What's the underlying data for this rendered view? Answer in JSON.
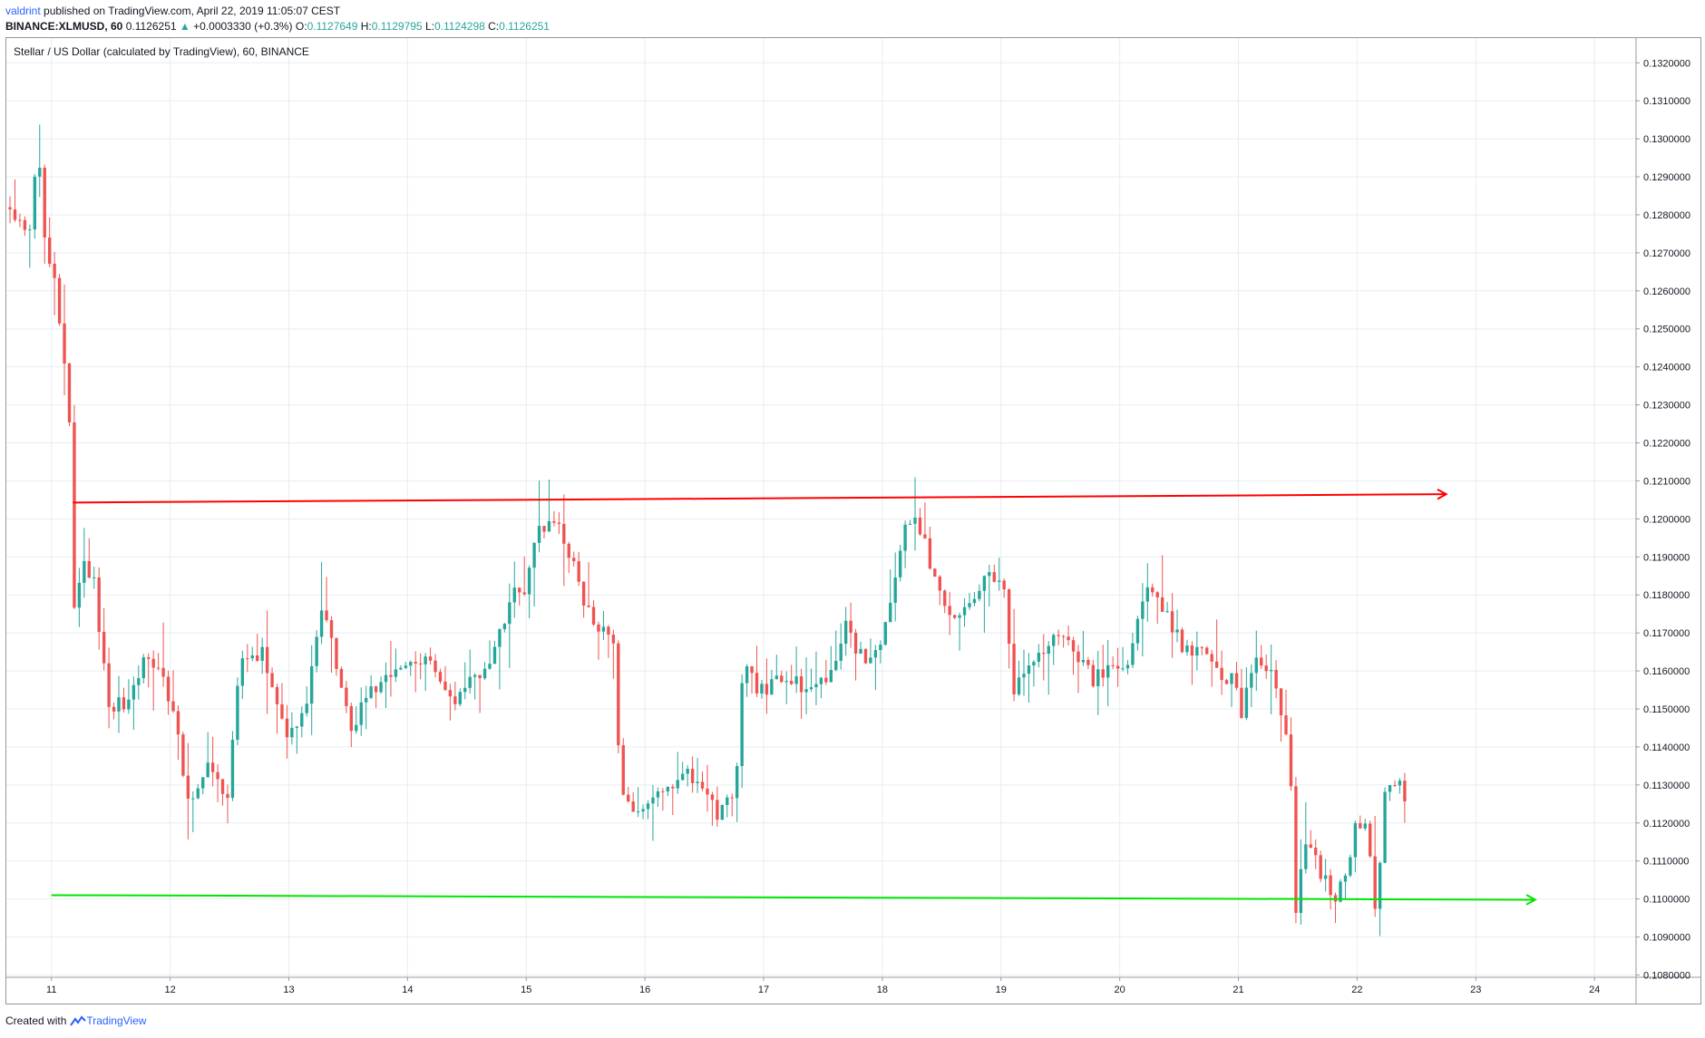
{
  "header": {
    "user": "valdrint",
    "published_text": "published on TradingView.com, April 22, 2019 11:05:07 CEST",
    "symbol": "BINANCE:XLMUSD, 60",
    "last": "0.1126251",
    "change": "+0.0003330 (+0.3%)",
    "o_label": "O:",
    "o_value": "0.1127649",
    "h_label": "H:",
    "h_value": "0.1129795",
    "l_label": "L:",
    "l_value": "0.1124298",
    "c_label": "C:",
    "c_value": "0.1126251"
  },
  "footer": {
    "created_with": "Created with",
    "brand": "TradingView",
    "logo_icon": "tradingview-logo-icon"
  },
  "colors": {
    "up": "#26a69a",
    "down": "#ef5350",
    "resistance": "#ff0000",
    "support": "#00e600",
    "grid": "#e8edf2",
    "text": "#131722",
    "link": "#2962ff"
  },
  "chart_data": {
    "type": "candlestick",
    "title": "Stellar / US Dollar (calculated by TradingView), 60, BINANCE",
    "x_ticks": [
      "11",
      "12",
      "13",
      "14",
      "15",
      "16",
      "17",
      "18",
      "19",
      "20",
      "21",
      "22",
      "23",
      "24"
    ],
    "x_range": [
      10.62,
      24.35
    ],
    "y_ticks": [
      "0.1080000",
      "0.1090000",
      "0.1100000",
      "0.1110000",
      "0.1120000",
      "0.1130000",
      "0.1140000",
      "0.1150000",
      "0.1160000",
      "0.1170000",
      "0.1180000",
      "0.1190000",
      "0.1200000",
      "0.1210000",
      "0.1220000",
      "0.1230000",
      "0.1240000",
      "0.1250000",
      "0.1260000",
      "0.1270000",
      "0.1280000",
      "0.1290000",
      "0.1300000",
      "0.1310000",
      "0.1320000"
    ],
    "ylim": [
      0.10794,
      0.13265
    ],
    "grid": true,
    "candle_interval_hours": 1,
    "path_keypoints": [
      [
        10.63,
        0.1282
      ],
      [
        10.85,
        0.1275
      ],
      [
        10.9,
        0.13
      ],
      [
        10.98,
        0.1268
      ],
      [
        11.05,
        0.1262
      ],
      [
        11.12,
        0.1245
      ],
      [
        11.17,
        0.1228
      ],
      [
        11.22,
        0.117
      ],
      [
        11.27,
        0.1188
      ],
      [
        11.38,
        0.1183
      ],
      [
        11.5,
        0.1152
      ],
      [
        11.65,
        0.115
      ],
      [
        11.8,
        0.1162
      ],
      [
        11.95,
        0.116
      ],
      [
        12.1,
        0.1142
      ],
      [
        12.15,
        0.1123
      ],
      [
        12.25,
        0.113
      ],
      [
        12.35,
        0.1137
      ],
      [
        12.45,
        0.1128
      ],
      [
        12.52,
        0.1128
      ],
      [
        12.6,
        0.1163
      ],
      [
        12.8,
        0.1165
      ],
      [
        12.95,
        0.115
      ],
      [
        13.0,
        0.114
      ],
      [
        13.15,
        0.115
      ],
      [
        13.3,
        0.1175
      ],
      [
        13.4,
        0.1165
      ],
      [
        13.55,
        0.1145
      ],
      [
        13.7,
        0.1155
      ],
      [
        13.9,
        0.1158
      ],
      [
        14.05,
        0.1163
      ],
      [
        14.2,
        0.1162
      ],
      [
        14.4,
        0.115
      ],
      [
        14.55,
        0.1158
      ],
      [
        14.7,
        0.1162
      ],
      [
        14.85,
        0.1175
      ],
      [
        14.95,
        0.1183
      ],
      [
        15.0,
        0.1178
      ],
      [
        15.1,
        0.1195
      ],
      [
        15.25,
        0.12
      ],
      [
        15.4,
        0.119
      ],
      [
        15.5,
        0.1178
      ],
      [
        15.7,
        0.1168
      ],
      [
        15.78,
        0.1165
      ],
      [
        15.8,
        0.1133
      ],
      [
        15.9,
        0.1122
      ],
      [
        16.0,
        0.1125
      ],
      [
        16.2,
        0.1127
      ],
      [
        16.4,
        0.1133
      ],
      [
        16.5,
        0.1128
      ],
      [
        16.65,
        0.1122
      ],
      [
        16.78,
        0.113
      ],
      [
        16.85,
        0.116
      ],
      [
        17.0,
        0.1155
      ],
      [
        17.2,
        0.1158
      ],
      [
        17.4,
        0.1155
      ],
      [
        17.6,
        0.116
      ],
      [
        17.7,
        0.1172
      ],
      [
        17.85,
        0.1163
      ],
      [
        18.0,
        0.1167
      ],
      [
        18.1,
        0.1178
      ],
      [
        18.2,
        0.1197
      ],
      [
        18.27,
        0.1202
      ],
      [
        18.35,
        0.1197
      ],
      [
        18.45,
        0.1185
      ],
      [
        18.6,
        0.1172
      ],
      [
        18.75,
        0.1178
      ],
      [
        18.9,
        0.1187
      ],
      [
        19.05,
        0.118
      ],
      [
        19.12,
        0.1155
      ],
      [
        19.3,
        0.1162
      ],
      [
        19.5,
        0.117
      ],
      [
        19.65,
        0.1165
      ],
      [
        19.8,
        0.1158
      ],
      [
        19.95,
        0.116
      ],
      [
        20.1,
        0.1163
      ],
      [
        20.22,
        0.118
      ],
      [
        20.3,
        0.1183
      ],
      [
        20.4,
        0.1175
      ],
      [
        20.55,
        0.1167
      ],
      [
        20.75,
        0.1165
      ],
      [
        20.9,
        0.1158
      ],
      [
        21.0,
        0.1157
      ],
      [
        21.05,
        0.1148
      ],
      [
        21.15,
        0.1163
      ],
      [
        21.3,
        0.1158
      ],
      [
        21.42,
        0.1145
      ],
      [
        21.47,
        0.1125
      ],
      [
        21.5,
        0.1096
      ],
      [
        21.6,
        0.1118
      ],
      [
        21.7,
        0.1108
      ],
      [
        21.85,
        0.11
      ],
      [
        21.95,
        0.1108
      ],
      [
        22.0,
        0.112
      ],
      [
        22.1,
        0.1118
      ],
      [
        22.18,
        0.1097
      ],
      [
        22.25,
        0.1127
      ],
      [
        22.38,
        0.113
      ],
      [
        22.4,
        0.1126
      ]
    ],
    "annotations": [
      {
        "type": "resistance-arrow",
        "from": [
          11.18,
          0.12043
        ],
        "to": [
          22.75,
          0.12065
        ],
        "color": "#ff0000"
      },
      {
        "type": "support-arrow",
        "from": [
          11.0,
          0.1101
        ],
        "to": [
          23.5,
          0.10998
        ],
        "color": "#00e600"
      }
    ]
  }
}
